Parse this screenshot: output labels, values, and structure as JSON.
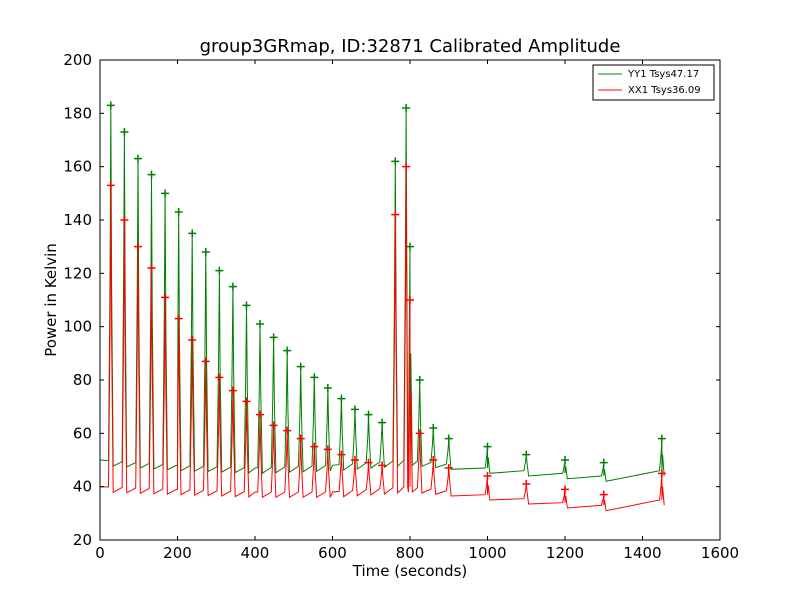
{
  "chart_data": {
    "type": "line",
    "title": "group3GRmap, ID:32871 Calibrated Amplitude",
    "xlabel": "Time (seconds)",
    "ylabel": "Power in Kelvin",
    "xlim": [
      0,
      1600
    ],
    "ylim": [
      20,
      200
    ],
    "xticks": [
      0,
      200,
      400,
      600,
      800,
      1000,
      1200,
      1400,
      1600
    ],
    "yticks": [
      20,
      40,
      60,
      80,
      100,
      120,
      140,
      160,
      180,
      200
    ],
    "grid": false,
    "legend_position": "top-right",
    "marker": "+",
    "series": [
      {
        "name": "YY1 Tsys47.17",
        "color": "#008000",
        "baseline": [
          [
            0,
            50
          ],
          [
            200,
            48
          ],
          [
            400,
            47
          ],
          [
            600,
            48
          ],
          [
            800,
            50
          ],
          [
            1000,
            47
          ],
          [
            1200,
            45
          ],
          [
            1300,
            44
          ],
          [
            1450,
            46
          ]
        ],
        "peaks": [
          [
            28,
            183
          ],
          [
            63,
            173
          ],
          [
            98,
            163
          ],
          [
            133,
            157
          ],
          [
            168,
            150
          ],
          [
            203,
            143
          ],
          [
            238,
            135
          ],
          [
            273,
            128
          ],
          [
            308,
            121
          ],
          [
            343,
            115
          ],
          [
            378,
            108
          ],
          [
            413,
            101
          ],
          [
            448,
            96
          ],
          [
            483,
            91
          ],
          [
            518,
            85
          ],
          [
            553,
            81
          ],
          [
            588,
            77
          ],
          [
            623,
            73
          ],
          [
            658,
            69
          ],
          [
            693,
            67
          ],
          [
            728,
            64
          ],
          [
            762,
            162
          ],
          [
            790,
            182
          ],
          [
            800,
            130
          ],
          [
            825,
            80
          ],
          [
            860,
            62
          ],
          [
            900,
            58
          ],
          [
            1000,
            55
          ],
          [
            1100,
            52
          ],
          [
            1200,
            50
          ],
          [
            1300,
            49
          ],
          [
            1450,
            58
          ]
        ]
      },
      {
        "name": "XX1 Tsys36.09",
        "color": "#ff0000",
        "baseline": [
          [
            0,
            40
          ],
          [
            200,
            39
          ],
          [
            400,
            38
          ],
          [
            600,
            38
          ],
          [
            800,
            40
          ],
          [
            1000,
            37
          ],
          [
            1200,
            34
          ],
          [
            1300,
            33
          ],
          [
            1450,
            35
          ]
        ],
        "peaks": [
          [
            28,
            153
          ],
          [
            63,
            140
          ],
          [
            98,
            130
          ],
          [
            133,
            122
          ],
          [
            168,
            111
          ],
          [
            203,
            103
          ],
          [
            238,
            95
          ],
          [
            273,
            87
          ],
          [
            308,
            81
          ],
          [
            343,
            76
          ],
          [
            378,
            72
          ],
          [
            413,
            67
          ],
          [
            448,
            63
          ],
          [
            483,
            61
          ],
          [
            518,
            58
          ],
          [
            553,
            55
          ],
          [
            588,
            54
          ],
          [
            623,
            52
          ],
          [
            658,
            50
          ],
          [
            693,
            49
          ],
          [
            728,
            48
          ],
          [
            762,
            142
          ],
          [
            790,
            160
          ],
          [
            800,
            110
          ],
          [
            825,
            60
          ],
          [
            860,
            50
          ],
          [
            900,
            47
          ],
          [
            1000,
            44
          ],
          [
            1100,
            41
          ],
          [
            1200,
            39
          ],
          [
            1300,
            37
          ],
          [
            1450,
            45
          ]
        ]
      }
    ]
  }
}
